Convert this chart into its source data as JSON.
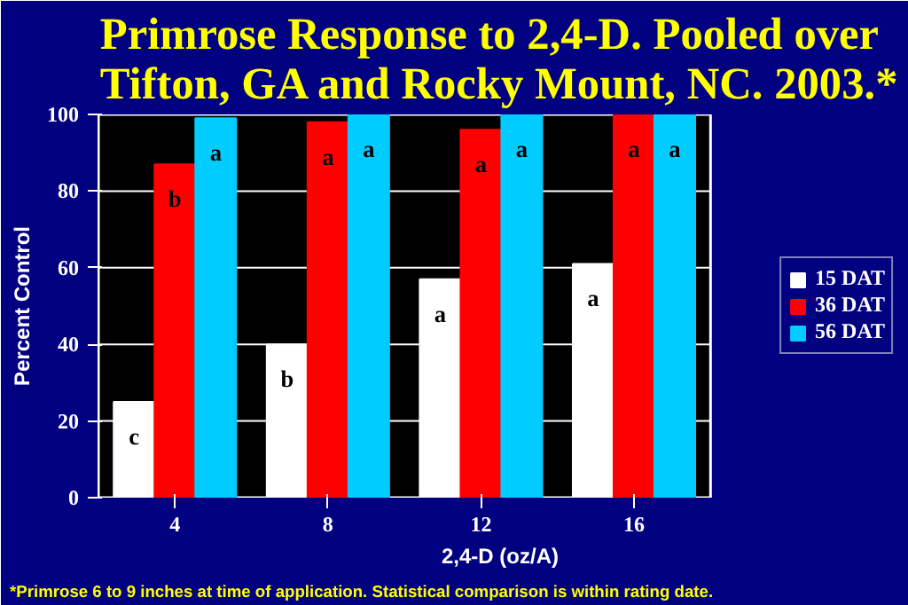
{
  "chart_data": {
    "type": "bar",
    "title": "Primrose Response to 2,4-D.  Pooled over\nTifton, GA and Rocky Mount, NC. 2003.*",
    "xlabel": "2,4-D (oz/A)",
    "ylabel": "Percent Control",
    "categories": [
      "4",
      "8",
      "12",
      "16"
    ],
    "series": [
      {
        "name": "15 DAT",
        "color": "#ffffff",
        "values": [
          25,
          40,
          57,
          61
        ],
        "value_labels": [
          "c",
          "b",
          "a",
          "a"
        ]
      },
      {
        "name": "36 DAT",
        "color": "#ff0000",
        "values": [
          87,
          98,
          96,
          100
        ],
        "value_labels": [
          "b",
          "a",
          "a",
          "a"
        ]
      },
      {
        "name": "56 DAT",
        "color": "#00ccff",
        "values": [
          99,
          100,
          100,
          100
        ],
        "value_labels": [
          "a",
          "a",
          "a",
          "a"
        ]
      }
    ],
    "ylim": [
      0,
      100
    ],
    "yticks": [
      0,
      20,
      40,
      60,
      80,
      100
    ],
    "grid": "y",
    "legend": "right",
    "annotations": [
      "*Primrose 6 to 9 inches at time of application.  Statistical comparison is within rating date."
    ]
  }
}
